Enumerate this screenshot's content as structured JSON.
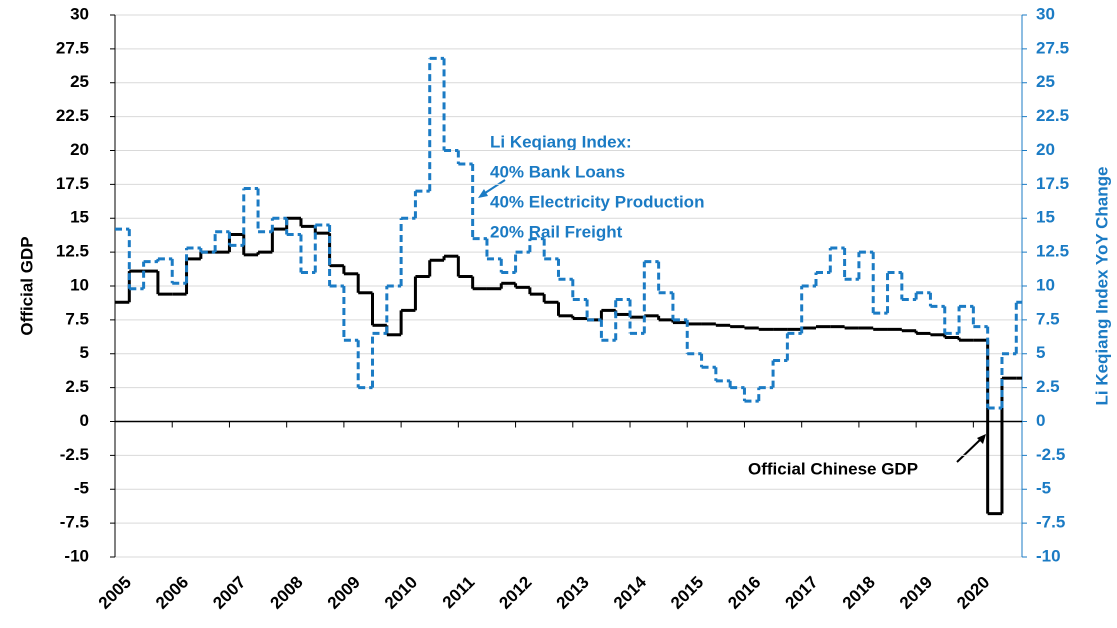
{
  "chart_data": {
    "type": "step",
    "y_label": "Official GDP",
    "y2_label": "Li Keqiang Index YoY Change",
    "annotations": [
      "Li Keqiang Index:",
      "40% Bank Loans",
      "40% Electricity Production",
      "20% Rail Freight",
      "Official Chinese GDP"
    ],
    "x": [
      2005,
      2005.25,
      2005.5,
      2005.75,
      2006,
      2006.25,
      2006.5,
      2006.75,
      2007,
      2007.25,
      2007.5,
      2007.75,
      2008,
      2008.25,
      2008.5,
      2008.75,
      2009,
      2009.25,
      2009.5,
      2009.75,
      2010,
      2010.25,
      2010.5,
      2010.75,
      2011,
      2011.25,
      2011.5,
      2011.75,
      2012,
      2012.25,
      2012.5,
      2012.75,
      2013,
      2013.25,
      2013.5,
      2013.75,
      2014,
      2014.25,
      2014.5,
      2014.75,
      2015,
      2015.25,
      2015.5,
      2015.75,
      2016,
      2016.25,
      2016.5,
      2016.75,
      2017,
      2017.25,
      2017.5,
      2017.75,
      2018,
      2018.25,
      2018.5,
      2018.75,
      2019,
      2019.25,
      2019.5,
      2019.75,
      2020,
      2020.25,
      2020.5,
      2020.75
    ],
    "series": [
      {
        "name": "Official Chinese GDP",
        "color": "#000000",
        "dashed": false,
        "axis": "y",
        "values": [
          8.8,
          11.1,
          11.1,
          9.4,
          9.4,
          12.0,
          12.5,
          12.5,
          13.8,
          12.3,
          12.5,
          14.2,
          15.0,
          14.4,
          13.9,
          11.5,
          10.9,
          9.5,
          7.1,
          6.4,
          8.2,
          10.7,
          11.9,
          12.2,
          10.7,
          9.8,
          9.8,
          10.2,
          9.9,
          9.4,
          8.8,
          7.8,
          7.6,
          7.5,
          8.2,
          7.9,
          7.7,
          7.8,
          7.5,
          7.3,
          7.2,
          7.2,
          7.1,
          7.0,
          6.9,
          6.8,
          6.8,
          6.8,
          6.9,
          7.0,
          7.0,
          6.9,
          6.9,
          6.8,
          6.8,
          6.7,
          6.5,
          6.4,
          6.2,
          6.0,
          6.0,
          -6.8,
          3.2,
          3.2
        ]
      },
      {
        "name": "Li Keqiang Index",
        "color": "#1b7bc4",
        "dashed": true,
        "axis": "y2",
        "values": [
          14.2,
          9.8,
          11.8,
          12.0,
          10.2,
          12.8,
          12.5,
          14.0,
          13.0,
          17.2,
          14.0,
          15.0,
          13.8,
          11.0,
          14.5,
          10.0,
          6.0,
          2.5,
          6.5,
          10.0,
          15.0,
          17.0,
          26.8,
          20.0,
          19.0,
          13.5,
          12.0,
          11.0,
          12.5,
          13.5,
          12.0,
          10.5,
          9.0,
          7.5,
          6.0,
          9.0,
          6.5,
          11.8,
          9.5,
          7.5,
          5.0,
          4.0,
          3.0,
          2.5,
          1.5,
          2.5,
          4.5,
          6.5,
          10.0,
          11.0,
          12.8,
          10.5,
          12.5,
          8.0,
          11.0,
          9.0,
          9.5,
          8.5,
          6.5,
          8.5,
          7.0,
          1.0,
          5.0,
          8.8
        ]
      }
    ],
    "xlim": [
      2005,
      2020.85
    ],
    "xticks": [
      2005,
      2006,
      2007,
      2008,
      2009,
      2010,
      2011,
      2012,
      2013,
      2014,
      2015,
      2016,
      2017,
      2018,
      2019,
      2020
    ],
    "ylim": [
      -10,
      30
    ],
    "yticks": [
      -10,
      -7.5,
      -5,
      -2.5,
      0,
      2.5,
      5,
      7.5,
      10,
      12.5,
      15,
      17.5,
      20,
      22.5,
      25,
      27.5,
      30
    ],
    "y2lim": [
      -10,
      30
    ],
    "y2ticks": [
      -10,
      -7.5,
      -5,
      -2.5,
      0,
      2.5,
      5,
      7.5,
      10,
      12.5,
      15,
      17.5,
      20,
      22.5,
      25,
      27.5,
      30
    ],
    "grid": true
  }
}
